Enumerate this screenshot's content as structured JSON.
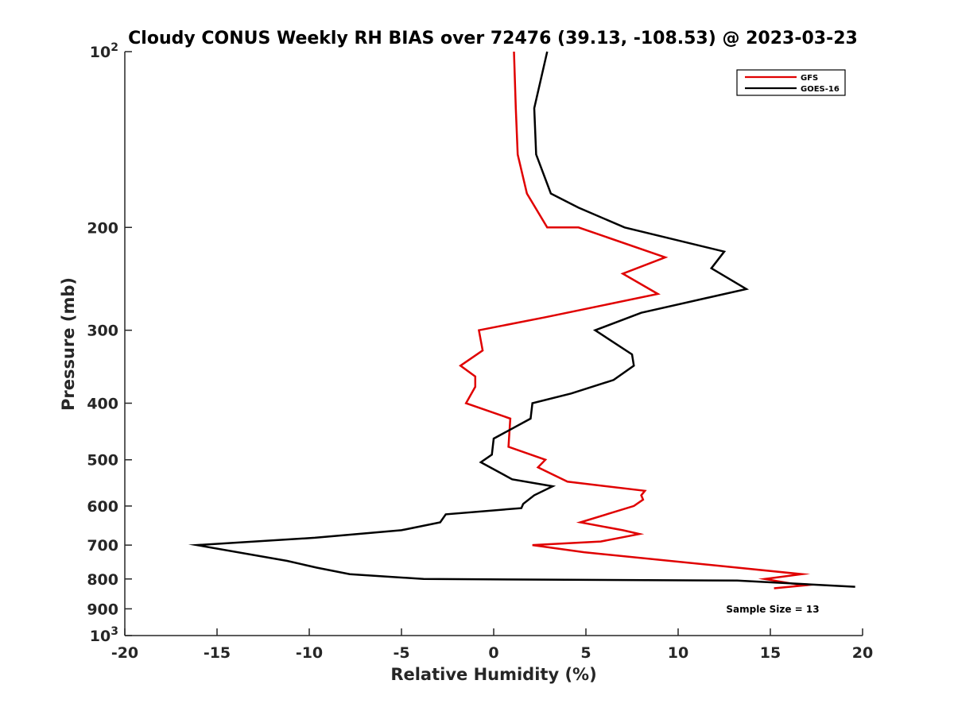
{
  "chart_data": {
    "type": "line",
    "title": "Cloudy CONUS Weekly RH BIAS over 72476 (39.13, -108.53) @ 2023-03-23",
    "xlabel": "Relative Humidity (%)",
    "ylabel": "Pressure (mb)",
    "xlim": [
      -20,
      20
    ],
    "ylim": [
      100,
      1000
    ],
    "yscale": "log",
    "y_reversed": true,
    "grid": false,
    "legend_position": "top-right",
    "x_ticks": [
      -20,
      -15,
      -10,
      -5,
      0,
      5,
      10,
      15,
      20
    ],
    "x_tick_labels": [
      "-20",
      "-15",
      "-10",
      "-5",
      "0",
      "5",
      "10",
      "15",
      "20"
    ],
    "y_ticks": [
      100,
      200,
      300,
      400,
      500,
      600,
      700,
      800,
      900,
      1000
    ],
    "y_tick_labels": [
      {
        "base": "10",
        "exp": "2"
      },
      {
        "base": "200"
      },
      {
        "base": "300"
      },
      {
        "base": "400"
      },
      {
        "base": "500"
      },
      {
        "base": "600"
      },
      {
        "base": "700"
      },
      {
        "base": "800"
      },
      {
        "base": "900"
      },
      {
        "base": "10",
        "exp": "3"
      }
    ],
    "annotation": "Sample Size = 13",
    "series": [
      {
        "name": "GFS",
        "color": "#e00000",
        "points": [
          [
            1.1,
            100
          ],
          [
            1.2,
            125
          ],
          [
            1.3,
            150
          ],
          [
            1.8,
            175
          ],
          [
            2.9,
            200
          ],
          [
            4.6,
            200
          ],
          [
            9.3,
            225
          ],
          [
            7.0,
            240
          ],
          [
            8.9,
            260
          ],
          [
            2.8,
            285
          ],
          [
            -0.8,
            300
          ],
          [
            -0.6,
            325
          ],
          [
            -1.8,
            345
          ],
          [
            -1.0,
            360
          ],
          [
            -1.0,
            375
          ],
          [
            -1.5,
            400
          ],
          [
            0.9,
            425
          ],
          [
            0.8,
            475
          ],
          [
            2.8,
            500
          ],
          [
            2.4,
            515
          ],
          [
            4.0,
            545
          ],
          [
            8.2,
            565
          ],
          [
            8.0,
            575
          ],
          [
            8.1,
            585
          ],
          [
            7.6,
            600
          ],
          [
            4.7,
            640
          ],
          [
            7.0,
            660
          ],
          [
            7.9,
            670
          ],
          [
            5.8,
            690
          ],
          [
            2.1,
            700
          ],
          [
            4.9,
            720
          ],
          [
            16.7,
            785
          ],
          [
            14.7,
            800
          ],
          [
            16.2,
            815
          ],
          [
            16.9,
            820
          ],
          [
            15.2,
            830
          ]
        ]
      },
      {
        "name": "GOES-16",
        "color": "#000000",
        "points": [
          [
            2.9,
            100
          ],
          [
            2.2,
            125
          ],
          [
            2.3,
            150
          ],
          [
            3.1,
            175
          ],
          [
            4.6,
            185
          ],
          [
            7.1,
            200
          ],
          [
            12.5,
            220
          ],
          [
            11.8,
            235
          ],
          [
            13.7,
            255
          ],
          [
            8.0,
            280
          ],
          [
            5.5,
            300
          ],
          [
            7.5,
            330
          ],
          [
            7.6,
            345
          ],
          [
            6.5,
            365
          ],
          [
            4.2,
            385
          ],
          [
            2.1,
            400
          ],
          [
            2.0,
            425
          ],
          [
            0.0,
            460
          ],
          [
            -0.1,
            490
          ],
          [
            -0.7,
            505
          ],
          [
            1.0,
            540
          ],
          [
            3.2,
            555
          ],
          [
            2.2,
            575
          ],
          [
            1.6,
            595
          ],
          [
            1.5,
            605
          ],
          [
            -2.6,
            620
          ],
          [
            -2.9,
            640
          ],
          [
            -5.0,
            660
          ],
          [
            -9.7,
            680
          ],
          [
            -16.1,
            700
          ],
          [
            -11.2,
            745
          ],
          [
            -9.6,
            765
          ],
          [
            -7.8,
            785
          ],
          [
            -3.8,
            800
          ],
          [
            13.2,
            805
          ],
          [
            19.6,
            825
          ]
        ]
      }
    ]
  }
}
